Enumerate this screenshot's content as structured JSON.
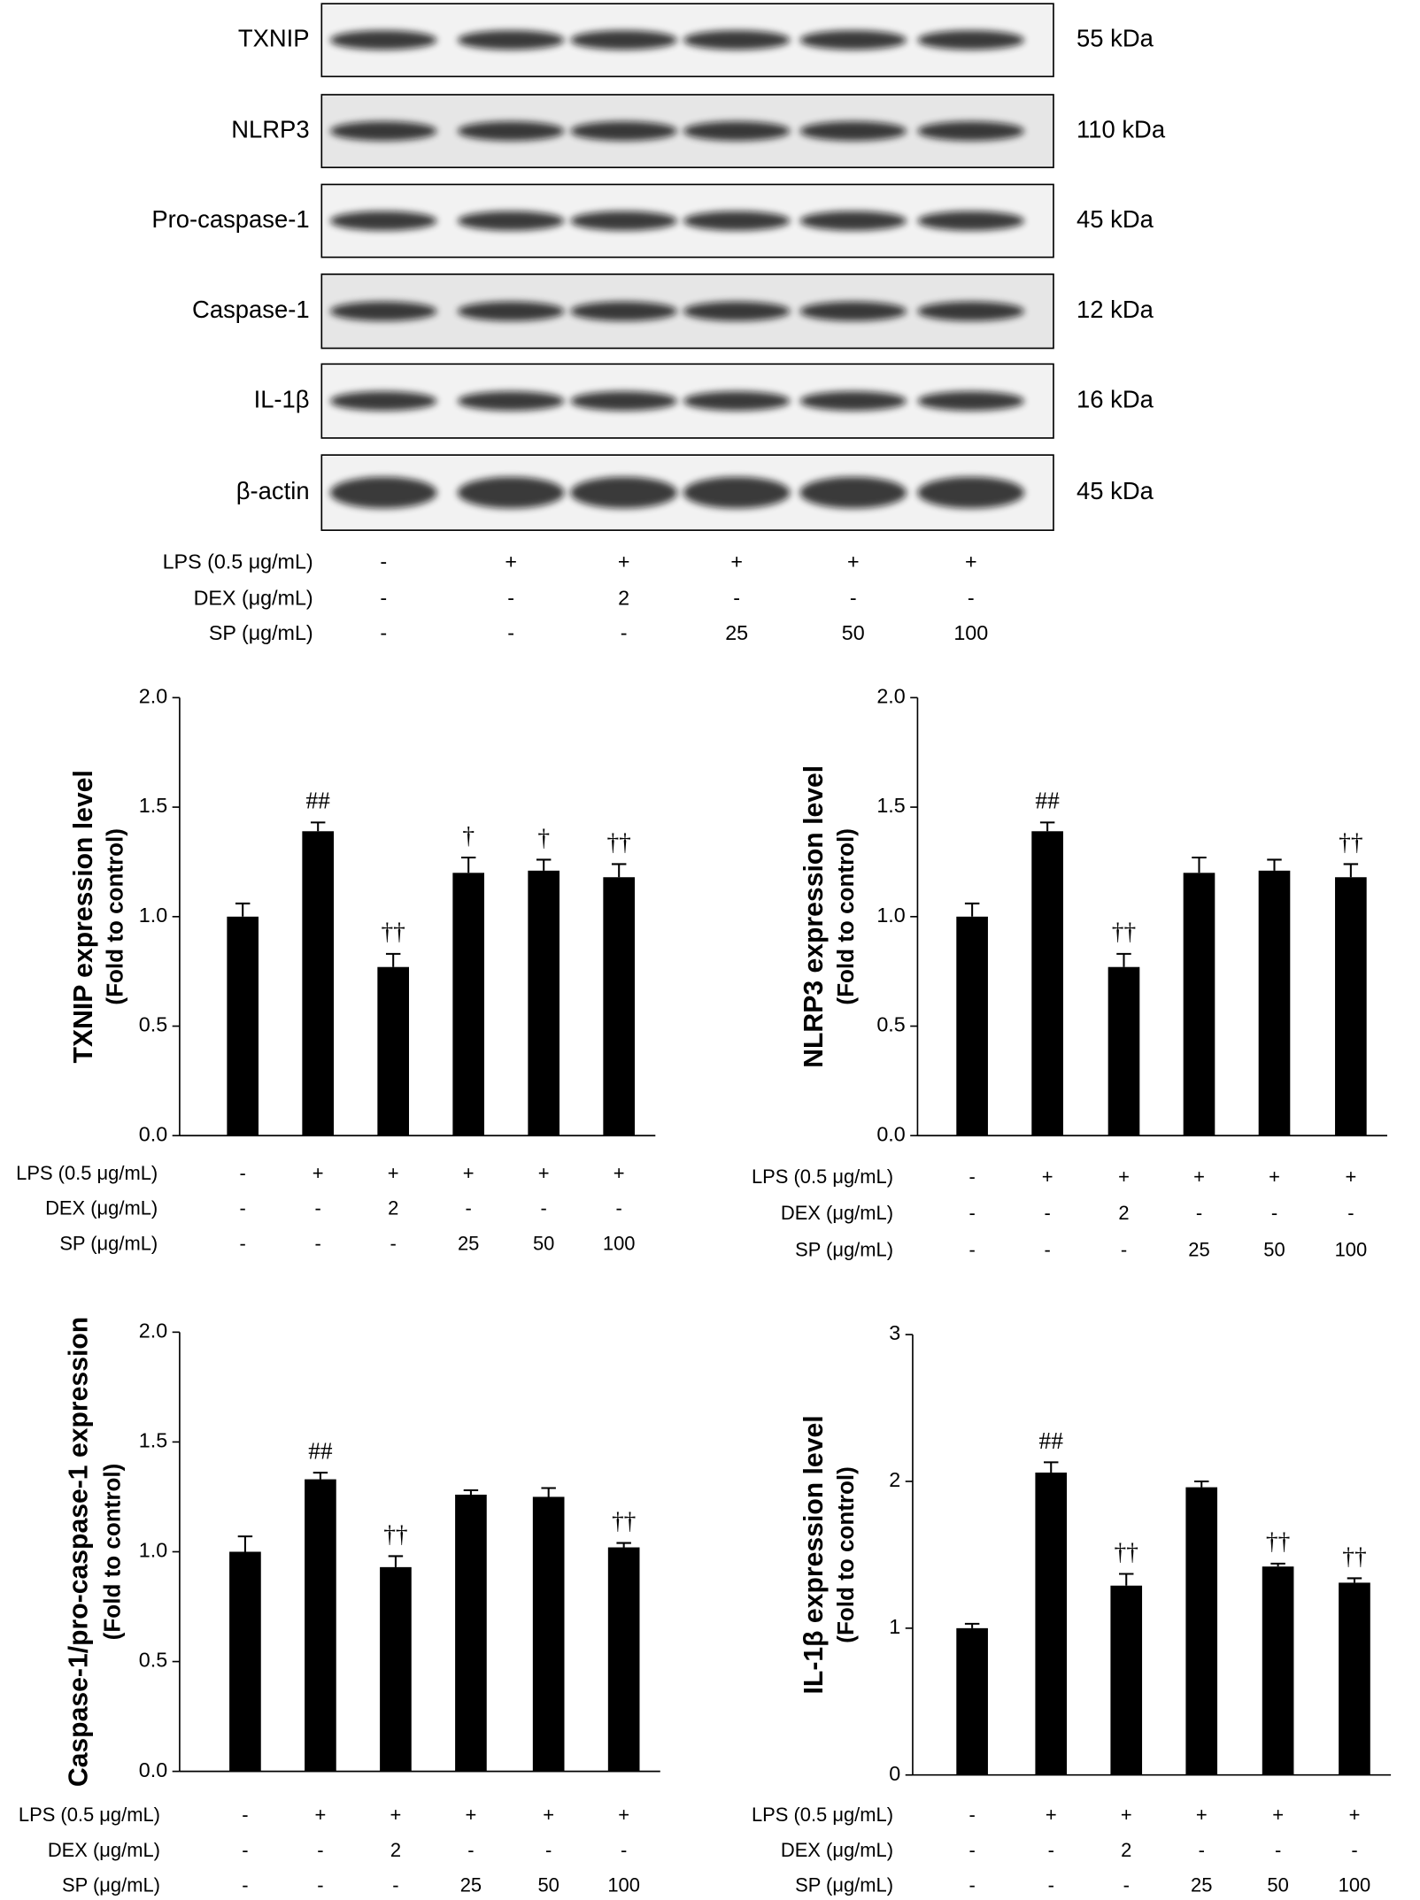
{
  "blot": {
    "rows": [
      {
        "label": "TXNIP",
        "size": "55 kDa"
      },
      {
        "label": "NLRP3",
        "size": "110 kDa"
      },
      {
        "label": "Pro-caspase-1",
        "size": "45 kDa"
      },
      {
        "label": "Caspase-1",
        "size": "12 kDa"
      },
      {
        "label": "IL-1β",
        "size": "16 kDa"
      },
      {
        "label": "β-actin",
        "size": "45 kDa"
      }
    ]
  },
  "treatments": [
    {
      "label": "LPS (0.5 μg/mL)",
      "values": [
        "-",
        "+",
        "+",
        "+",
        "+",
        "+"
      ]
    },
    {
      "label": "DEX (μg/mL)",
      "values": [
        "-",
        "-",
        "2",
        "-",
        "-",
        "-"
      ]
    },
    {
      "label": "SP (μg/mL)",
      "values": [
        "-",
        "-",
        "-",
        "25",
        "50",
        "100"
      ]
    }
  ],
  "chart_data": [
    {
      "type": "bar",
      "ylabel": [
        "TXNIP expression level",
        "(Fold to control)"
      ],
      "color": "#000000",
      "values": [
        1.0,
        1.39,
        0.77,
        1.2,
        1.21,
        1.18
      ],
      "errors": [
        0.06,
        0.04,
        0.06,
        0.07,
        0.05,
        0.06
      ],
      "annotations": [
        null,
        "##",
        "††",
        "†",
        "†",
        "††"
      ],
      "ylim": [
        0,
        2
      ],
      "yticks": [
        {
          "value": 0,
          "label": "0.0"
        },
        {
          "value": 0.5,
          "label": "0.5"
        },
        {
          "value": 1,
          "label": "1.0"
        },
        {
          "value": 1.5,
          "label": "1.5"
        },
        {
          "value": 2,
          "label": "2.0"
        }
      ]
    },
    {
      "type": "bar",
      "ylabel": [
        "NLRP3 expression level",
        "(Fold to control)"
      ],
      "color": "#000000",
      "values": [
        1.0,
        1.39,
        0.77,
        1.2,
        1.21,
        1.18
      ],
      "errors": [
        0.06,
        0.04,
        0.06,
        0.07,
        0.05,
        0.06
      ],
      "annotations": [
        null,
        "##",
        "††",
        null,
        null,
        "††"
      ],
      "ylim": [
        0,
        2
      ],
      "yticks": [
        {
          "value": 0,
          "label": "0.0"
        },
        {
          "value": 0.5,
          "label": "0.5"
        },
        {
          "value": 1,
          "label": "1.0"
        },
        {
          "value": 1.5,
          "label": "1.5"
        },
        {
          "value": 2,
          "label": "2.0"
        }
      ]
    },
    {
      "type": "bar",
      "ylabel": [
        "Caspase-1/pro-caspase-1 expression",
        "(Fold to control)"
      ],
      "color": "#000000",
      "values": [
        1.0,
        1.33,
        0.93,
        1.26,
        1.25,
        1.02
      ],
      "errors": [
        0.07,
        0.03,
        0.05,
        0.02,
        0.04,
        0.02
      ],
      "annotations": [
        null,
        "##",
        "††",
        null,
        null,
        "††"
      ],
      "ylim": [
        0,
        2
      ],
      "yticks": [
        {
          "value": 0,
          "label": "0.0"
        },
        {
          "value": 0.5,
          "label": "0.5"
        },
        {
          "value": 1,
          "label": "1.0"
        },
        {
          "value": 1.5,
          "label": "1.5"
        },
        {
          "value": 2,
          "label": "2.0"
        }
      ]
    },
    {
      "type": "bar",
      "ylabel": [
        "IL-1β expression level",
        "(Fold to control)"
      ],
      "color": "#000000",
      "values": [
        1.0,
        2.06,
        1.29,
        1.96,
        1.42,
        1.31
      ],
      "errors": [
        0.03,
        0.07,
        0.08,
        0.04,
        0.02,
        0.03
      ],
      "annotations": [
        null,
        "##",
        "††",
        null,
        "††",
        "††"
      ],
      "ylim": [
        0,
        3
      ],
      "yticks": [
        0,
        1,
        2,
        3
      ]
    }
  ]
}
